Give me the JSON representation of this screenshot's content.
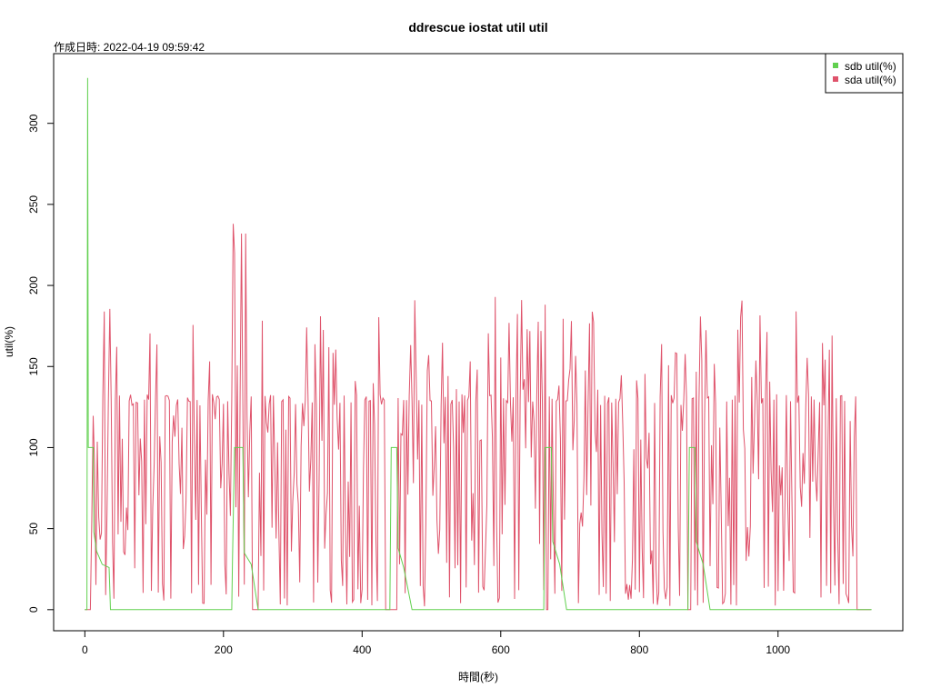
{
  "chart_data": {
    "type": "line",
    "title": "ddrescue iostat util util",
    "subtitle": "作成日時: 2022-04-19 09:59:42",
    "xlabel": "時間(秒)",
    "ylabel": "util(%)",
    "xlim": [
      -45,
      1180
    ],
    "ylim": [
      -13,
      343
    ],
    "xticks": [
      0,
      200,
      400,
      600,
      800,
      1000
    ],
    "yticks": [
      0,
      50,
      100,
      150,
      200,
      250,
      300
    ],
    "legend_position": "top-right",
    "duration": 1135,
    "series": [
      {
        "name": "sdb util(%)",
        "color": "#61D04F",
        "points": [
          [
            0,
            0
          ],
          [
            3,
            0
          ],
          [
            4,
            328
          ],
          [
            5,
            100
          ],
          [
            12,
            100
          ],
          [
            13,
            48
          ],
          [
            17,
            36
          ],
          [
            20,
            33
          ],
          [
            25,
            28
          ],
          [
            35,
            26
          ],
          [
            37,
            0
          ],
          [
            212,
            0
          ],
          [
            213,
            30
          ],
          [
            216,
            100
          ],
          [
            228,
            100
          ],
          [
            230,
            35
          ],
          [
            240,
            28
          ],
          [
            250,
            0
          ],
          [
            440,
            0
          ],
          [
            442,
            100
          ],
          [
            450,
            100
          ],
          [
            452,
            38
          ],
          [
            460,
            26
          ],
          [
            472,
            0
          ],
          [
            662,
            0
          ],
          [
            664,
            100
          ],
          [
            673,
            100
          ],
          [
            675,
            42
          ],
          [
            685,
            28
          ],
          [
            695,
            0
          ],
          [
            870,
            0
          ],
          [
            872,
            100
          ],
          [
            880,
            100
          ],
          [
            882,
            42
          ],
          [
            892,
            28
          ],
          [
            902,
            0
          ],
          [
            1135,
            0
          ]
        ]
      },
      {
        "name": "sda util(%)",
        "color": "#DF536B",
        "points": [
          [
            0,
            0
          ],
          [
            1135,
            0
          ]
        ]
      }
    ]
  }
}
